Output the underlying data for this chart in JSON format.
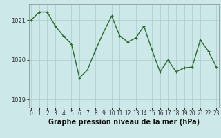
{
  "hours": [
    0,
    1,
    2,
    3,
    4,
    5,
    6,
    7,
    8,
    9,
    10,
    11,
    12,
    13,
    14,
    15,
    16,
    17,
    18,
    19,
    20,
    21,
    22,
    23
  ],
  "pressure": [
    1021.0,
    1021.2,
    1021.2,
    1020.85,
    1020.6,
    1020.4,
    1019.55,
    1019.75,
    1020.25,
    1020.7,
    1021.1,
    1020.6,
    1020.45,
    1020.55,
    1020.85,
    1020.25,
    1019.7,
    1020.0,
    1019.7,
    1019.8,
    1019.82,
    1020.5,
    1020.22,
    1019.82
  ],
  "line_color": "#2d6a2d",
  "marker": "+",
  "marker_size": 3,
  "marker_edge_width": 0.8,
  "bg_color": "#cce8e8",
  "grid_color": "#aacaca",
  "yticks": [
    1019,
    1020,
    1021
  ],
  "ylim": [
    1018.8,
    1021.4
  ],
  "xlim": [
    -0.3,
    23.3
  ],
  "xlabel": "Graphe pression niveau de la mer (hPa)",
  "xlabel_fontsize": 7,
  "tick_fontsize": 6,
  "line_width": 1.0,
  "fig_width": 3.2,
  "fig_height": 2.0,
  "dpi": 100
}
